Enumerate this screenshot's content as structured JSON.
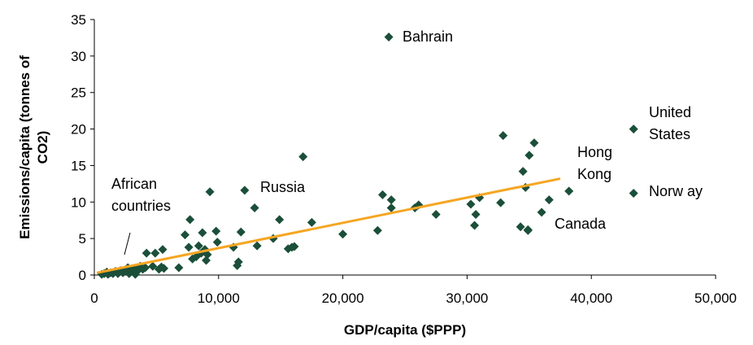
{
  "chart_data": {
    "type": "scatter",
    "xlabel": "GDP/capita ($PPP)",
    "ylabel_lines": [
      "Emissions/capita (tonnes of",
      "CO2)"
    ],
    "xlim": [
      0,
      50000
    ],
    "ylim": [
      0,
      35
    ],
    "x_ticks": [
      0,
      10000,
      20000,
      30000,
      40000,
      50000
    ],
    "x_tick_labels": [
      "0",
      "10,000",
      "20,000",
      "30,000",
      "40,000",
      "50,000"
    ],
    "y_ticks": [
      0,
      5,
      10,
      15,
      20,
      25,
      30,
      35
    ],
    "y_tick_labels": [
      "0",
      "5",
      "10",
      "15",
      "20",
      "25",
      "30",
      "35"
    ],
    "grid": false,
    "legend": false,
    "colors": {
      "markers": "#1b4f3a",
      "trendline": "#f5a623"
    },
    "trendline": {
      "x": [
        200,
        37500
      ],
      "y": [
        0.3,
        13.2
      ]
    },
    "series": [
      {
        "marker": "diamond",
        "points": [
          [
            600,
            0.1
          ],
          [
            800,
            0.2
          ],
          [
            1000,
            0.4
          ],
          [
            1100,
            0.1
          ],
          [
            1300,
            0.3
          ],
          [
            1500,
            0.2
          ],
          [
            1700,
            0.5
          ],
          [
            1900,
            0.2
          ],
          [
            2100,
            0.6
          ],
          [
            2300,
            0.3
          ],
          [
            2500,
            0.7
          ],
          [
            2700,
            1.0
          ],
          [
            2800,
            0.2
          ],
          [
            3000,
            0.5
          ],
          [
            3200,
            0.9
          ],
          [
            3300,
            0.1
          ],
          [
            3500,
            0.6
          ],
          [
            3700,
            1.2
          ],
          [
            3900,
            0.8
          ],
          [
            4100,
            1.0
          ],
          [
            4200,
            3.0
          ],
          [
            4700,
            1.2
          ],
          [
            4900,
            3.0
          ],
          [
            5200,
            0.8
          ],
          [
            5400,
            1.1
          ],
          [
            5500,
            3.5
          ],
          [
            5600,
            0.9
          ],
          [
            6800,
            1.0
          ],
          [
            7300,
            5.5
          ],
          [
            7600,
            3.8
          ],
          [
            7700,
            7.6
          ],
          [
            7900,
            2.2
          ],
          [
            8200,
            2.5
          ],
          [
            8400,
            4.0
          ],
          [
            8600,
            3.0
          ],
          [
            8700,
            5.8
          ],
          [
            8900,
            3.5
          ],
          [
            9000,
            2.0
          ],
          [
            9100,
            2.8
          ],
          [
            9300,
            11.4
          ],
          [
            9800,
            6.0
          ],
          [
            9900,
            4.5
          ],
          [
            11200,
            3.8
          ],
          [
            11500,
            1.3
          ],
          [
            11600,
            1.8
          ],
          [
            11800,
            5.9
          ],
          [
            12100,
            11.6
          ],
          [
            12900,
            9.2
          ],
          [
            13100,
            4.0
          ],
          [
            14400,
            5.0
          ],
          [
            14900,
            7.6
          ],
          [
            15600,
            3.6
          ],
          [
            15900,
            3.8
          ],
          [
            16100,
            3.9
          ],
          [
            16800,
            16.2
          ],
          [
            17500,
            7.2
          ],
          [
            20000,
            5.6
          ],
          [
            22800,
            6.1
          ],
          [
            23200,
            11.0
          ],
          [
            23700,
            32.6
          ],
          [
            23900,
            10.3
          ],
          [
            23900,
            9.2
          ],
          [
            25800,
            9.2
          ],
          [
            26100,
            9.6
          ],
          [
            27500,
            8.3
          ],
          [
            30300,
            9.7
          ],
          [
            30600,
            6.8
          ],
          [
            30700,
            8.3
          ],
          [
            31000,
            10.6
          ],
          [
            32700,
            9.9
          ],
          [
            32900,
            19.1
          ],
          [
            34300,
            6.6
          ],
          [
            34500,
            14.2
          ],
          [
            34700,
            12.0
          ],
          [
            34900,
            6.2
          ],
          [
            35000,
            16.4
          ],
          [
            35400,
            18.1
          ],
          [
            36000,
            8.6
          ],
          [
            36600,
            10.3
          ],
          [
            38200,
            11.5
          ],
          [
            43400,
            20.0
          ],
          [
            43400,
            11.2
          ],
          [
            34900,
            6.1
          ]
        ]
      }
    ],
    "annotations": [
      {
        "lines": [
          "Bahrain"
        ]
      },
      {
        "lines": [
          "Russia"
        ]
      },
      {
        "lines": [
          "African",
          "countries"
        ]
      },
      {
        "lines": [
          "Hong",
          "Kong"
        ]
      },
      {
        "lines": [
          "United",
          "States"
        ]
      },
      {
        "lines": [
          "Norw ay"
        ]
      },
      {
        "lines": [
          "Canada"
        ]
      }
    ]
  }
}
